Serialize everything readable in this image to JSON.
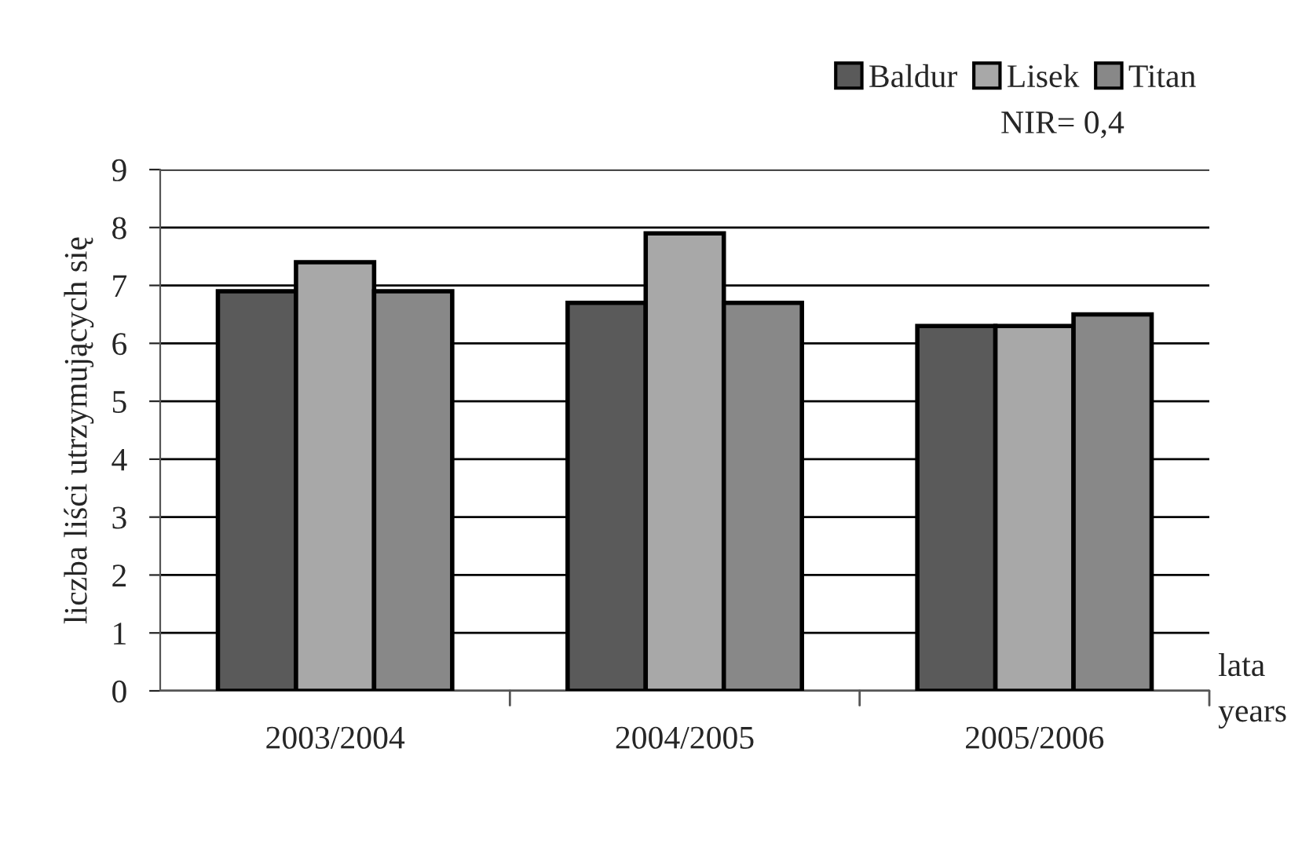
{
  "chart_data": {
    "type": "bar",
    "ylabel": "liczba liści utrzymujących się",
    "xlabel": "lata\nyears",
    "categories": [
      "2003/2004",
      "2004/2005",
      "2005/2006"
    ],
    "series": [
      {
        "name": "Baldur",
        "color": "#5a5a5a",
        "values": [
          6.9,
          6.7,
          6.3
        ]
      },
      {
        "name": "Lisek",
        "color": "#a8a8a8",
        "values": [
          7.4,
          7.9,
          6.3
        ]
      },
      {
        "name": "Titan",
        "color": "#888888",
        "values": [
          6.9,
          6.7,
          6.5
        ]
      }
    ],
    "ylim": [
      0,
      9
    ],
    "yticks": [
      0,
      1,
      2,
      3,
      4,
      5,
      6,
      7,
      8,
      9
    ],
    "grid": "y",
    "legend": "top right",
    "annotations": [
      "NIR= 0,4"
    ]
  }
}
